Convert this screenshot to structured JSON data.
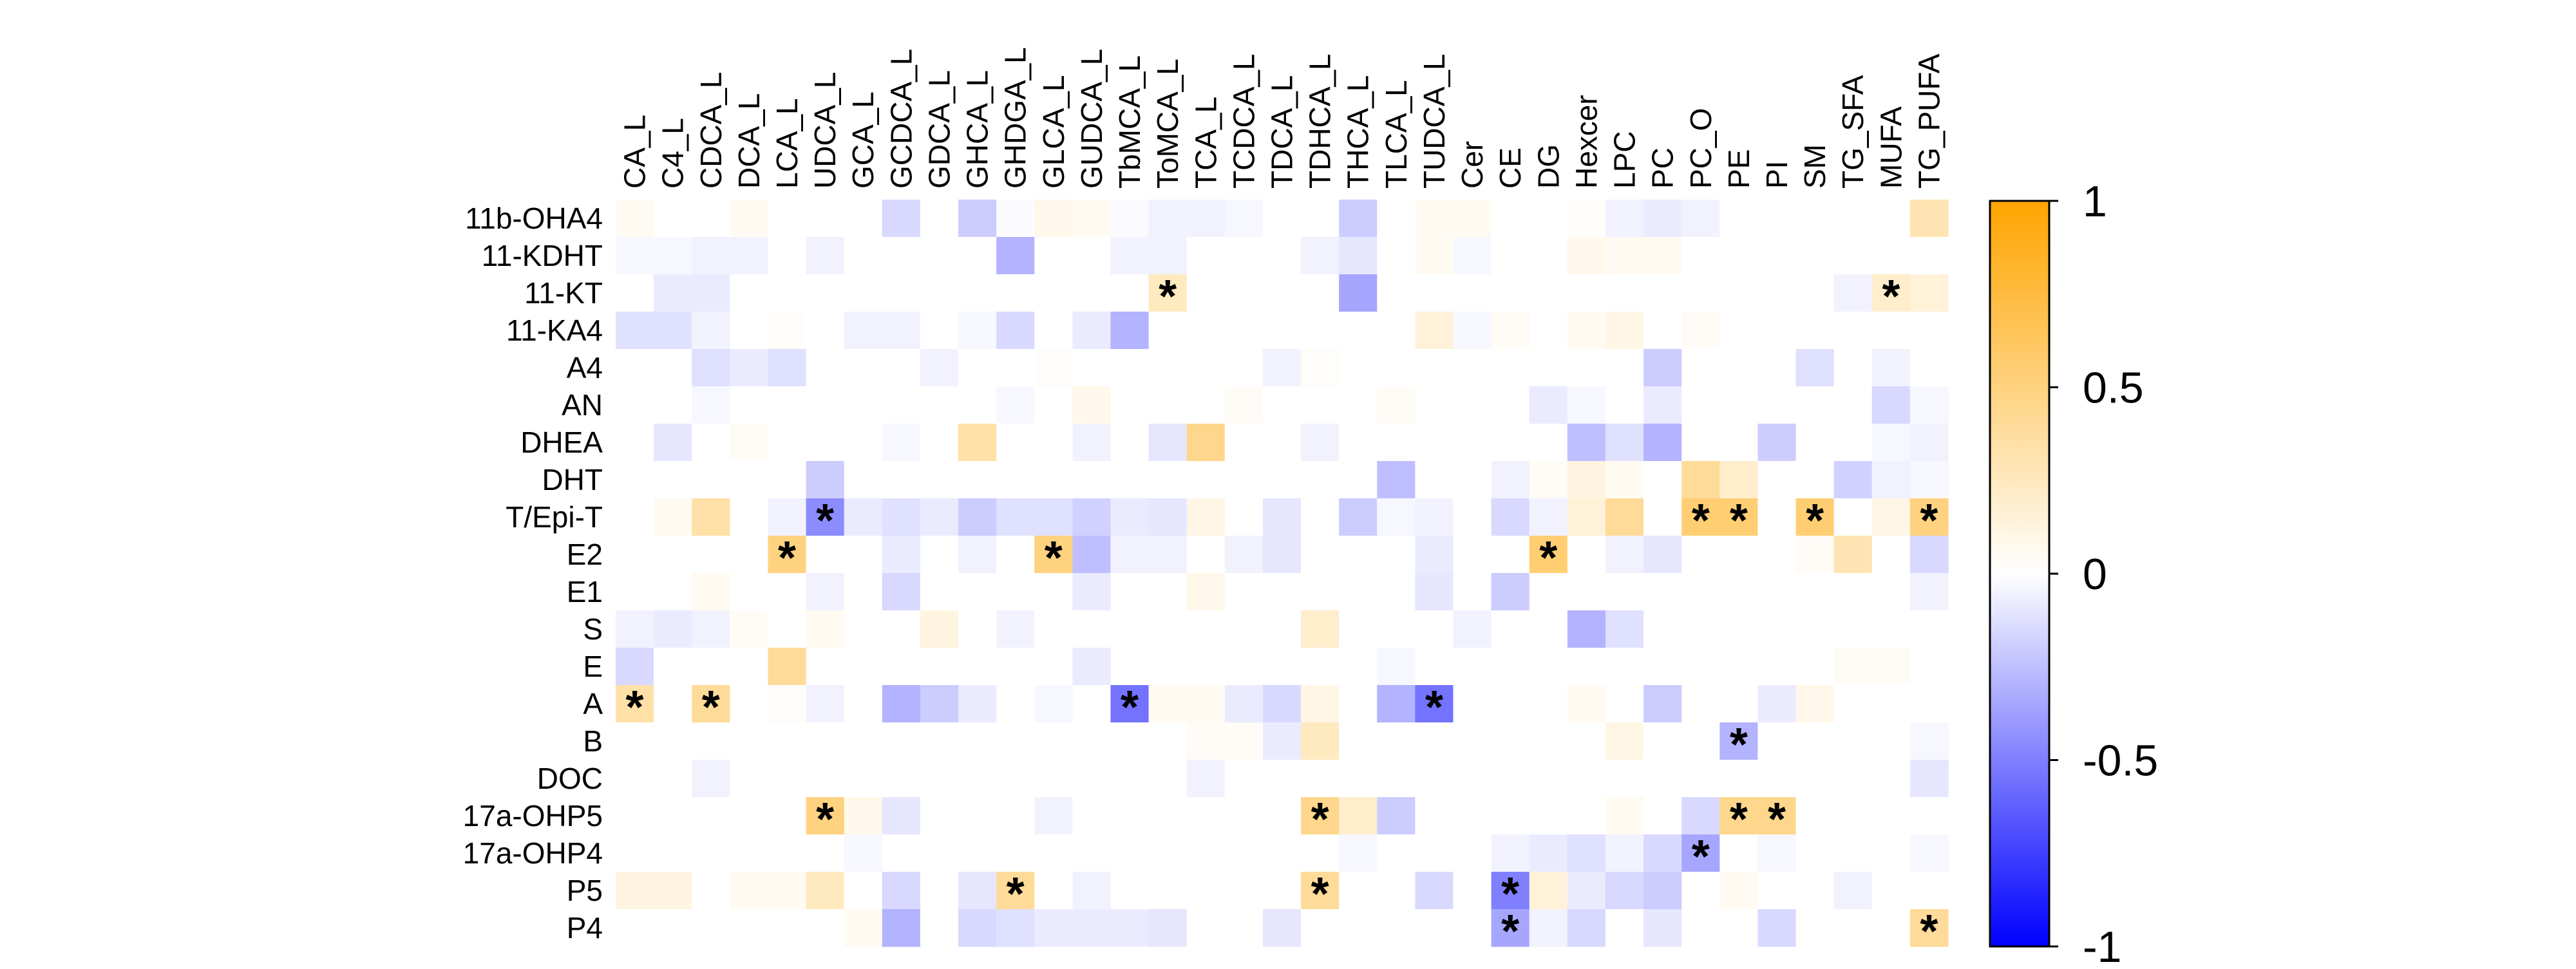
{
  "chart_data": {
    "type": "heatmap",
    "title": "",
    "xlabel": "",
    "ylabel": "",
    "columns": [
      "CA_L",
      "C4_L",
      "CDCA_L",
      "DCA_L",
      "LCA_L",
      "UDCA_L",
      "GCA_L",
      "GCDCA_L",
      "GDCA_L",
      "GHCA_L",
      "GHDGA_L",
      "GLCA_L",
      "GUDCA_L",
      "TbMCA_L",
      "ToMCA_L",
      "TCA_L",
      "TCDCA_L",
      "TDCA_L",
      "TDHCA_L",
      "THCA_L",
      "TLCA_L",
      "TUDCA_L",
      "Cer",
      "CE",
      "DG",
      "Hexcer",
      "LPC",
      "PC",
      "PC_O",
      "PE",
      "PI",
      "SM",
      "TG_SFA",
      "MUFA",
      "TG_PUFA"
    ],
    "rows": [
      "11b-OHA4",
      "11-KDHT",
      "11-KT",
      "11-KA4",
      "A4",
      "AN",
      "DHEA",
      "DHT",
      "T/Epi-T",
      "E2",
      "E1",
      "S",
      "E",
      "A",
      "B",
      "DOC",
      "17a-OHP5",
      "17a-OHP4",
      "P5",
      "P4"
    ],
    "values": [
      [
        0.05,
        0.0,
        0.0,
        0.05,
        0.0,
        0.0,
        0.0,
        -0.15,
        0.0,
        -0.2,
        -0.02,
        0.08,
        0.05,
        -0.02,
        -0.05,
        -0.05,
        -0.03,
        0.0,
        0.0,
        -0.2,
        0.0,
        0.05,
        0.05,
        0.0,
        0.0,
        0.02,
        -0.05,
        -0.08,
        -0.05,
        0.0,
        0.0,
        0.0,
        0.0,
        0.0,
        0.3
      ],
      [
        -0.03,
        -0.03,
        -0.05,
        -0.05,
        0.0,
        -0.05,
        0.0,
        0.0,
        0.0,
        0.0,
        -0.3,
        0.0,
        0.0,
        -0.05,
        -0.05,
        0.0,
        0.0,
        0.0,
        -0.05,
        -0.1,
        0.0,
        0.05,
        -0.03,
        0.0,
        0.0,
        0.08,
        0.05,
        0.05,
        0.0,
        0.0,
        0.0,
        0.0,
        0.0,
        0.0,
        0.0
      ],
      [
        0.0,
        -0.08,
        -0.08,
        0.0,
        0.0,
        0.0,
        0.0,
        0.0,
        0.0,
        0.0,
        0.0,
        0.0,
        0.0,
        0.0,
        0.25,
        0.0,
        0.0,
        0.0,
        0.0,
        -0.35,
        0.0,
        0.0,
        0.0,
        0.0,
        0.0,
        0.0,
        0.0,
        0.0,
        0.0,
        0.0,
        0.0,
        0.0,
        -0.05,
        0.2,
        0.15
      ],
      [
        -0.12,
        -0.12,
        -0.05,
        0.0,
        0.02,
        0.0,
        -0.05,
        -0.05,
        0.0,
        -0.03,
        -0.15,
        0.0,
        -0.08,
        -0.3,
        0.0,
        0.0,
        0.0,
        0.0,
        0.0,
        0.0,
        0.0,
        0.15,
        -0.03,
        0.03,
        0.0,
        0.05,
        0.1,
        0.0,
        0.03,
        0.0,
        0.0,
        0.0,
        0.0,
        0.0,
        0.0
      ],
      [
        0.0,
        0.0,
        -0.12,
        -0.08,
        -0.12,
        0.0,
        0.0,
        0.0,
        -0.05,
        0.0,
        0.0,
        0.02,
        0.0,
        0.0,
        0.0,
        0.0,
        0.0,
        -0.05,
        0.02,
        0.0,
        0.0,
        0.0,
        0.0,
        0.0,
        0.0,
        0.0,
        0.0,
        -0.2,
        0.0,
        0.0,
        0.0,
        -0.12,
        0.0,
        -0.05,
        0.0
      ],
      [
        0.0,
        0.0,
        -0.03,
        0.0,
        0.0,
        0.0,
        0.0,
        0.0,
        0.0,
        0.0,
        -0.03,
        0.0,
        0.08,
        0.0,
        0.0,
        0.0,
        0.03,
        0.0,
        0.0,
        0.0,
        0.03,
        0.0,
        0.0,
        0.0,
        -0.08,
        -0.03,
        0.0,
        -0.08,
        0.0,
        0.0,
        0.0,
        0.0,
        0.0,
        -0.15,
        -0.03
      ],
      [
        0.0,
        -0.1,
        0.0,
        0.03,
        0.0,
        0.0,
        0.0,
        -0.03,
        0.0,
        0.35,
        0.0,
        0.0,
        -0.05,
        0.0,
        -0.1,
        0.45,
        0.0,
        0.0,
        -0.05,
        0.0,
        0.0,
        0.0,
        0.0,
        0.0,
        0.0,
        -0.25,
        -0.12,
        -0.3,
        0.0,
        0.0,
        -0.2,
        0.0,
        0.0,
        -0.03,
        -0.05
      ],
      [
        0.0,
        0.0,
        0.0,
        0.0,
        0.0,
        -0.2,
        0.0,
        0.0,
        0.0,
        0.0,
        0.0,
        0.0,
        0.0,
        0.0,
        0.0,
        0.0,
        0.0,
        0.0,
        0.0,
        0.0,
        -0.25,
        0.0,
        0.0,
        -0.05,
        0.03,
        0.12,
        0.05,
        0.0,
        0.4,
        0.2,
        0.0,
        0.0,
        -0.18,
        -0.05,
        -0.03
      ],
      [
        0.0,
        0.05,
        0.35,
        0.0,
        -0.05,
        -0.45,
        -0.08,
        -0.12,
        -0.08,
        -0.2,
        -0.12,
        -0.12,
        -0.18,
        -0.08,
        -0.1,
        0.1,
        0.0,
        -0.1,
        0.0,
        -0.2,
        -0.03,
        -0.05,
        0.0,
        -0.15,
        -0.05,
        0.15,
        0.4,
        0.0,
        0.55,
        0.55,
        0.0,
        0.55,
        0.0,
        0.1,
        0.5
      ],
      [
        0.0,
        0.0,
        0.0,
        0.0,
        0.5,
        0.0,
        0.0,
        -0.08,
        0.0,
        -0.05,
        0.0,
        0.5,
        -0.25,
        -0.05,
        -0.05,
        0.0,
        -0.05,
        -0.1,
        0.0,
        0.0,
        0.0,
        -0.08,
        0.0,
        0.0,
        0.55,
        0.0,
        -0.05,
        -0.1,
        0.0,
        0.0,
        0.0,
        0.03,
        0.3,
        0.0,
        -0.15
      ],
      [
        0.0,
        0.0,
        0.05,
        0.0,
        0.0,
        -0.05,
        0.0,
        -0.15,
        0.0,
        0.0,
        0.0,
        0.0,
        -0.08,
        0.0,
        0.0,
        0.08,
        0.0,
        0.0,
        0.0,
        0.0,
        0.0,
        -0.1,
        0.0,
        -0.2,
        0.0,
        0.0,
        0.0,
        0.0,
        0.0,
        0.0,
        0.0,
        0.0,
        0.0,
        0.0,
        -0.05
      ],
      [
        -0.05,
        -0.08,
        -0.05,
        0.03,
        0.0,
        0.05,
        0.0,
        0.0,
        0.12,
        0.0,
        -0.05,
        0.0,
        0.0,
        0.0,
        0.0,
        0.0,
        0.0,
        0.0,
        0.2,
        0.0,
        0.0,
        0.0,
        -0.05,
        0.0,
        0.0,
        -0.3,
        -0.12,
        0.0,
        0.0,
        0.0,
        0.0,
        0.0,
        0.0,
        0.0,
        0.0
      ],
      [
        -0.15,
        0.0,
        0.0,
        0.0,
        0.4,
        0.0,
        0.0,
        0.0,
        0.0,
        0.0,
        0.0,
        0.0,
        -0.08,
        0.0,
        0.0,
        0.0,
        0.0,
        0.0,
        0.0,
        0.0,
        -0.03,
        0.0,
        0.0,
        0.0,
        0.0,
        0.0,
        0.0,
        0.0,
        0.0,
        0.0,
        0.0,
        0.0,
        0.03,
        0.03,
        0.0
      ],
      [
        0.35,
        0.0,
        0.4,
        0.0,
        0.02,
        -0.05,
        0.0,
        -0.3,
        -0.2,
        -0.08,
        0.0,
        -0.03,
        0.0,
        -0.55,
        0.05,
        0.05,
        -0.08,
        -0.15,
        0.1,
        0.0,
        -0.3,
        -0.55,
        0.0,
        0.0,
        0.0,
        0.05,
        0.0,
        -0.2,
        0.0,
        0.0,
        -0.08,
        0.08,
        0.0,
        0.0,
        0.0
      ],
      [
        0.0,
        0.0,
        0.0,
        0.0,
        0.0,
        0.0,
        0.0,
        0.0,
        0.0,
        0.0,
        0.0,
        0.0,
        0.0,
        0.0,
        0.0,
        0.03,
        0.03,
        -0.08,
        0.25,
        0.0,
        0.0,
        0.0,
        0.0,
        0.0,
        0.0,
        0.0,
        0.1,
        0.0,
        0.0,
        -0.3,
        0.0,
        0.0,
        0.0,
        0.0,
        -0.03
      ],
      [
        0.0,
        0.0,
        -0.05,
        0.0,
        0.0,
        0.0,
        0.0,
        0.0,
        0.0,
        0.0,
        0.0,
        0.0,
        0.0,
        0.0,
        0.0,
        -0.05,
        0.0,
        0.0,
        0.0,
        0.0,
        0.0,
        0.0,
        0.0,
        0.0,
        0.0,
        0.0,
        0.0,
        0.0,
        0.0,
        0.0,
        0.0,
        0.0,
        0.0,
        0.0,
        -0.1
      ],
      [
        0.0,
        0.0,
        0.0,
        0.0,
        0.0,
        0.5,
        0.08,
        -0.1,
        0.0,
        0.0,
        0.0,
        -0.05,
        0.0,
        0.0,
        0.0,
        0.0,
        0.0,
        0.0,
        0.45,
        0.2,
        -0.2,
        0.0,
        0.0,
        0.0,
        0.0,
        0.0,
        0.05,
        0.0,
        -0.15,
        0.45,
        0.45,
        0.0,
        0.0,
        0.0,
        0.0
      ],
      [
        0.0,
        0.0,
        0.0,
        0.0,
        0.0,
        0.0,
        -0.03,
        0.0,
        0.0,
        0.0,
        0.0,
        0.0,
        0.0,
        0.0,
        0.0,
        0.0,
        0.0,
        0.0,
        0.0,
        -0.03,
        0.0,
        0.0,
        0.0,
        -0.05,
        -0.08,
        -0.12,
        -0.05,
        -0.15,
        -0.35,
        0.0,
        -0.03,
        0.0,
        0.0,
        0.0,
        -0.03
      ],
      [
        0.12,
        0.12,
        0.0,
        0.05,
        0.05,
        0.25,
        0.0,
        -0.15,
        0.0,
        -0.1,
        0.4,
        0.0,
        -0.05,
        0.0,
        0.0,
        0.0,
        0.0,
        0.0,
        0.4,
        0.0,
        0.0,
        -0.15,
        0.0,
        -0.5,
        0.15,
        -0.08,
        -0.15,
        -0.2,
        0.0,
        0.05,
        0.0,
        0.0,
        -0.05,
        0.0,
        0.0
      ],
      [
        0.0,
        0.0,
        0.0,
        0.0,
        0.0,
        0.0,
        0.05,
        -0.3,
        0.0,
        -0.15,
        -0.12,
        -0.08,
        -0.08,
        -0.08,
        -0.1,
        0.0,
        0.0,
        -0.1,
        0.0,
        0.0,
        0.0,
        0.0,
        0.0,
        -0.35,
        -0.05,
        -0.15,
        0.0,
        -0.1,
        0.0,
        0.0,
        -0.15,
        0.0,
        0.0,
        0.0,
        0.4
      ]
    ],
    "significance_marker": "*",
    "significant_cells": [
      [
        2,
        14
      ],
      [
        2,
        33
      ],
      [
        8,
        5
      ],
      [
        8,
        28
      ],
      [
        8,
        29
      ],
      [
        8,
        31
      ],
      [
        8,
        34
      ],
      [
        9,
        4
      ],
      [
        9,
        11
      ],
      [
        9,
        24
      ],
      [
        13,
        0
      ],
      [
        13,
        2
      ],
      [
        13,
        13
      ],
      [
        13,
        21
      ],
      [
        14,
        29
      ],
      [
        16,
        5
      ],
      [
        16,
        18
      ],
      [
        16,
        29
      ],
      [
        16,
        30
      ],
      [
        17,
        28
      ],
      [
        18,
        10
      ],
      [
        18,
        18
      ],
      [
        18,
        23
      ],
      [
        19,
        23
      ],
      [
        19,
        34
      ]
    ],
    "colorbar": {
      "range": [
        -1,
        1
      ],
      "ticks": [
        1,
        0.5,
        0,
        -0.5,
        -1
      ],
      "tick_labels": [
        "1",
        "0.5",
        "0",
        "-0.5",
        "-1"
      ],
      "colors": {
        "low": "#0000ff",
        "mid": "#ffffff",
        "high": "#ffa500"
      }
    },
    "grid": false,
    "legend": "colorbar-right"
  }
}
